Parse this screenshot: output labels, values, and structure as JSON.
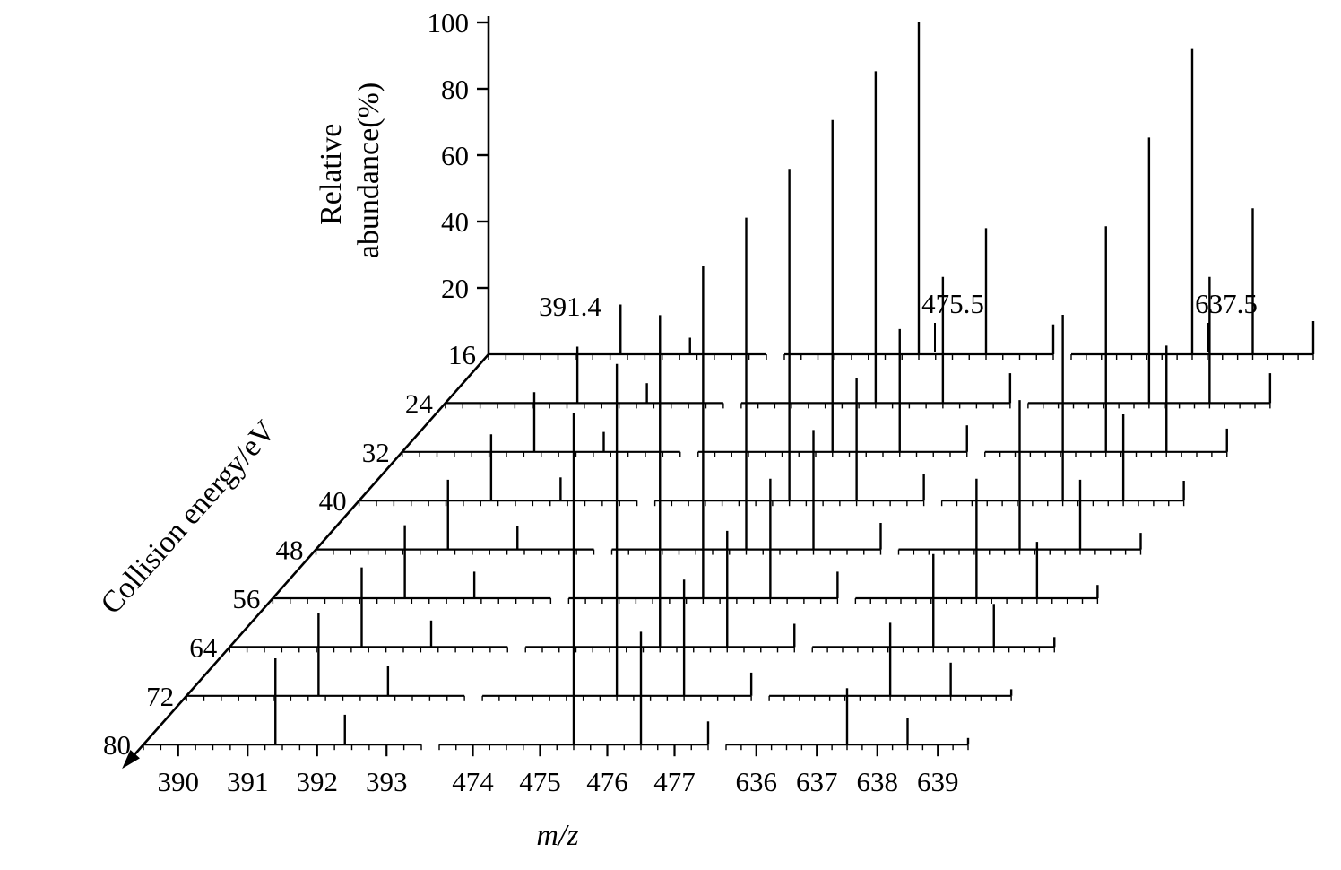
{
  "colors": {
    "ink": "#000000",
    "background": "#ffffff"
  },
  "chart_data": {
    "type": "bar",
    "variant": "3d-waterfall-mass-spectra",
    "title": "",
    "xlabel": "m/z",
    "ylabel": "Relative abundance(%)",
    "ylabel_lines": [
      "Relative",
      "abundance(%)"
    ],
    "zlabel": "Collision energy/eV",
    "ylim": [
      0,
      100
    ],
    "yticks": [
      20,
      40,
      60,
      80,
      100
    ],
    "grid": false,
    "legend": false,
    "projection": "oblique-waterfall",
    "collision_energies": [
      16,
      24,
      32,
      40,
      48,
      56,
      64,
      72,
      80
    ],
    "mz_groups": [
      {
        "range": [
          389.5,
          393.5
        ],
        "ticks": [
          390,
          391,
          392,
          393
        ]
      },
      {
        "range": [
          473.5,
          477.5
        ],
        "ticks": [
          474,
          475,
          476,
          477
        ]
      },
      {
        "range": [
          635.5,
          639.5
        ],
        "ticks": [
          636,
          637,
          638,
          639
        ]
      }
    ],
    "annotations": [
      {
        "label": "391.4",
        "mz": 391.4
      },
      {
        "label": "475.5",
        "mz": 475.5
      },
      {
        "label": "637.5",
        "mz": 637.5
      }
    ],
    "spectra": [
      {
        "energy": 16,
        "peaks": [
          {
            "mz": 391.4,
            "i": 15
          },
          {
            "mz": 392.4,
            "i": 5
          },
          {
            "mz": 475.5,
            "i": 100
          },
          {
            "mz": 476.5,
            "i": 38
          },
          {
            "mz": 477.5,
            "i": 9
          },
          {
            "mz": 637.5,
            "i": 92
          },
          {
            "mz": 638.5,
            "i": 44
          },
          {
            "mz": 639.5,
            "i": 10
          }
        ]
      },
      {
        "energy": 24,
        "peaks": [
          {
            "mz": 391.4,
            "i": 17
          },
          {
            "mz": 392.4,
            "i": 6
          },
          {
            "mz": 475.5,
            "i": 100
          },
          {
            "mz": 476.5,
            "i": 38
          },
          {
            "mz": 477.5,
            "i": 9
          },
          {
            "mz": 637.5,
            "i": 80
          },
          {
            "mz": 638.5,
            "i": 38
          },
          {
            "mz": 639.5,
            "i": 9
          }
        ]
      },
      {
        "energy": 32,
        "peaks": [
          {
            "mz": 391.4,
            "i": 18
          },
          {
            "mz": 392.4,
            "i": 6
          },
          {
            "mz": 475.5,
            "i": 100
          },
          {
            "mz": 476.5,
            "i": 37
          },
          {
            "mz": 477.5,
            "i": 8
          },
          {
            "mz": 637.5,
            "i": 68
          },
          {
            "mz": 638.5,
            "i": 32
          },
          {
            "mz": 639.5,
            "i": 7
          }
        ]
      },
      {
        "energy": 40,
        "peaks": [
          {
            "mz": 391.4,
            "i": 20
          },
          {
            "mz": 392.4,
            "i": 7
          },
          {
            "mz": 475.5,
            "i": 100
          },
          {
            "mz": 476.5,
            "i": 37
          },
          {
            "mz": 477.5,
            "i": 8
          },
          {
            "mz": 637.5,
            "i": 56
          },
          {
            "mz": 638.5,
            "i": 26
          },
          {
            "mz": 639.5,
            "i": 6
          }
        ]
      },
      {
        "energy": 48,
        "peaks": [
          {
            "mz": 391.4,
            "i": 21
          },
          {
            "mz": 392.4,
            "i": 7
          },
          {
            "mz": 475.5,
            "i": 100
          },
          {
            "mz": 476.5,
            "i": 36
          },
          {
            "mz": 477.5,
            "i": 8
          },
          {
            "mz": 637.5,
            "i": 45
          },
          {
            "mz": 638.5,
            "i": 21
          },
          {
            "mz": 639.5,
            "i": 5
          }
        ]
      },
      {
        "energy": 56,
        "peaks": [
          {
            "mz": 391.4,
            "i": 22
          },
          {
            "mz": 392.4,
            "i": 8
          },
          {
            "mz": 475.5,
            "i": 100
          },
          {
            "mz": 476.5,
            "i": 36
          },
          {
            "mz": 477.5,
            "i": 8
          },
          {
            "mz": 637.5,
            "i": 36
          },
          {
            "mz": 638.5,
            "i": 17
          },
          {
            "mz": 639.5,
            "i": 4
          }
        ]
      },
      {
        "energy": 64,
        "peaks": [
          {
            "mz": 391.4,
            "i": 24
          },
          {
            "mz": 392.4,
            "i": 8
          },
          {
            "mz": 475.5,
            "i": 100
          },
          {
            "mz": 476.5,
            "i": 35
          },
          {
            "mz": 477.5,
            "i": 7
          },
          {
            "mz": 637.5,
            "i": 28
          },
          {
            "mz": 638.5,
            "i": 13
          },
          {
            "mz": 639.5,
            "i": 3
          }
        ]
      },
      {
        "energy": 72,
        "peaks": [
          {
            "mz": 391.4,
            "i": 25
          },
          {
            "mz": 392.4,
            "i": 9
          },
          {
            "mz": 475.5,
            "i": 100
          },
          {
            "mz": 476.5,
            "i": 35
          },
          {
            "mz": 477.5,
            "i": 7
          },
          {
            "mz": 637.5,
            "i": 22
          },
          {
            "mz": 638.5,
            "i": 10
          },
          {
            "mz": 639.5,
            "i": 2
          }
        ]
      },
      {
        "energy": 80,
        "peaks": [
          {
            "mz": 391.4,
            "i": 26
          },
          {
            "mz": 392.4,
            "i": 9
          },
          {
            "mz": 475.5,
            "i": 100
          },
          {
            "mz": 476.5,
            "i": 34
          },
          {
            "mz": 477.5,
            "i": 7
          },
          {
            "mz": 637.5,
            "i": 17
          },
          {
            "mz": 638.5,
            "i": 8
          },
          {
            "mz": 639.5,
            "i": 2
          }
        ]
      }
    ]
  }
}
